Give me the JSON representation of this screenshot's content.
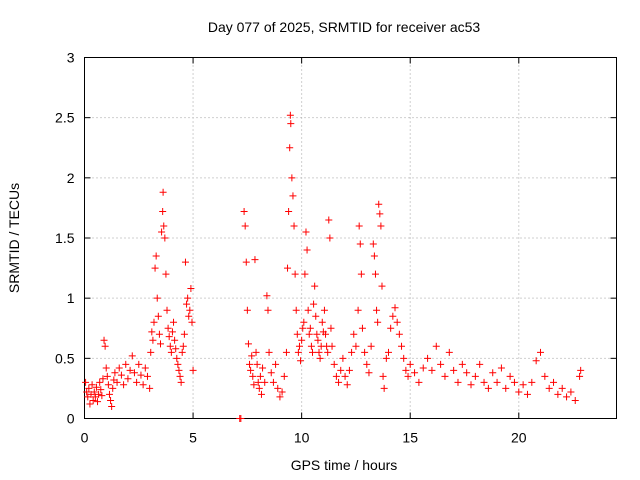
{
  "chart_data": {
    "type": "scatter",
    "title": "Day 077 of 2025, SRMTID for receiver ac53",
    "xlabel": "GPS time / hours",
    "ylabel": "SRMTID / TECUs",
    "xlim": [
      0,
      24.5
    ],
    "ylim": [
      0,
      3
    ],
    "xticks": [
      0,
      5,
      10,
      15,
      20
    ],
    "xtick_labels": [
      "0",
      "5",
      "10",
      "15",
      "20"
    ],
    "yticks": [
      0,
      0.5,
      1,
      1.5,
      2,
      2.5,
      3
    ],
    "ytick_labels": [
      "0",
      "0.5",
      "1",
      "1.5",
      "2",
      "2.5",
      "3"
    ],
    "grid": true,
    "marker": "+",
    "color": "#ff0000",
    "series": [
      {
        "name": "SRMTID",
        "points": [
          [
            0.05,
            0.3
          ],
          [
            0.1,
            0.22
          ],
          [
            0.15,
            0.18
          ],
          [
            0.2,
            0.25
          ],
          [
            0.25,
            0.12
          ],
          [
            0.3,
            0.2
          ],
          [
            0.35,
            0.28
          ],
          [
            0.4,
            0.15
          ],
          [
            0.45,
            0.22
          ],
          [
            0.5,
            0.18
          ],
          [
            0.55,
            0.26
          ],
          [
            0.6,
            0.14
          ],
          [
            0.65,
            0.2
          ],
          [
            0.7,
            0.3
          ],
          [
            0.75,
            0.24
          ],
          [
            0.8,
            0.19
          ],
          [
            0.85,
            0.33
          ],
          [
            0.9,
            0.65
          ],
          [
            0.95,
            0.6
          ],
          [
            1.0,
            0.42
          ],
          [
            1.05,
            0.35
          ],
          [
            1.1,
            0.28
          ],
          [
            1.15,
            0.2
          ],
          [
            1.2,
            0.15
          ],
          [
            1.25,
            0.1
          ],
          [
            1.3,
            0.25
          ],
          [
            1.35,
            0.32
          ],
          [
            1.4,
            0.38
          ],
          [
            1.5,
            0.3
          ],
          [
            1.6,
            0.42
          ],
          [
            1.7,
            0.36
          ],
          [
            1.8,
            0.28
          ],
          [
            1.9,
            0.45
          ],
          [
            2.0,
            0.33
          ],
          [
            2.1,
            0.4
          ],
          [
            2.2,
            0.52
          ],
          [
            2.3,
            0.38
          ],
          [
            2.4,
            0.3
          ],
          [
            2.5,
            0.45
          ],
          [
            2.6,
            0.36
          ],
          [
            2.7,
            0.28
          ],
          [
            2.8,
            0.42
          ],
          [
            2.9,
            0.35
          ],
          [
            3.0,
            0.25
          ],
          [
            3.05,
            0.55
          ],
          [
            3.1,
            0.72
          ],
          [
            3.15,
            0.65
          ],
          [
            3.2,
            0.8
          ],
          [
            3.25,
            1.25
          ],
          [
            3.3,
            1.35
          ],
          [
            3.35,
            1.0
          ],
          [
            3.4,
            0.85
          ],
          [
            3.45,
            0.7
          ],
          [
            3.5,
            0.62
          ],
          [
            3.55,
            1.55
          ],
          [
            3.6,
            1.72
          ],
          [
            3.62,
            1.88
          ],
          [
            3.65,
            1.6
          ],
          [
            3.7,
            1.5
          ],
          [
            3.75,
            1.2
          ],
          [
            3.8,
            0.9
          ],
          [
            3.85,
            0.75
          ],
          [
            3.9,
            0.68
          ],
          [
            3.95,
            0.6
          ],
          [
            4.0,
            0.55
          ],
          [
            4.05,
            0.72
          ],
          [
            4.1,
            0.8
          ],
          [
            4.15,
            0.65
          ],
          [
            4.2,
            0.58
          ],
          [
            4.25,
            0.5
          ],
          [
            4.3,
            0.45
          ],
          [
            4.35,
            0.4
          ],
          [
            4.4,
            0.35
          ],
          [
            4.45,
            0.3
          ],
          [
            4.5,
            0.55
          ],
          [
            4.55,
            0.6
          ],
          [
            4.6,
            0.7
          ],
          [
            4.65,
            1.3
          ],
          [
            4.7,
            0.95
          ],
          [
            4.75,
            1.0
          ],
          [
            4.8,
            0.85
          ],
          [
            4.85,
            0.9
          ],
          [
            4.9,
            1.08
          ],
          [
            4.95,
            0.8
          ],
          [
            5.0,
            0.4
          ],
          [
            7.15,
            0.0
          ],
          [
            7.2,
            0.0
          ],
          [
            7.35,
            1.72
          ],
          [
            7.4,
            1.6
          ],
          [
            7.45,
            1.3
          ],
          [
            7.5,
            0.9
          ],
          [
            7.55,
            0.62
          ],
          [
            7.6,
            0.45
          ],
          [
            7.65,
            0.4
          ],
          [
            7.7,
            0.52
          ],
          [
            7.75,
            0.35
          ],
          [
            7.8,
            0.28
          ],
          [
            7.85,
            1.32
          ],
          [
            7.9,
            0.55
          ],
          [
            7.95,
            0.45
          ],
          [
            8.0,
            0.3
          ],
          [
            8.05,
            0.25
          ],
          [
            8.1,
            0.35
          ],
          [
            8.15,
            0.2
          ],
          [
            8.2,
            0.42
          ],
          [
            8.3,
            0.3
          ],
          [
            8.4,
            1.02
          ],
          [
            8.45,
            0.9
          ],
          [
            8.5,
            0.55
          ],
          [
            8.6,
            0.38
          ],
          [
            8.7,
            0.3
          ],
          [
            8.8,
            0.45
          ],
          [
            8.9,
            0.25
          ],
          [
            9.0,
            0.18
          ],
          [
            9.1,
            0.22
          ],
          [
            9.2,
            0.35
          ],
          [
            9.3,
            0.55
          ],
          [
            9.35,
            1.25
          ],
          [
            9.4,
            1.72
          ],
          [
            9.45,
            2.25
          ],
          [
            9.48,
            2.52
          ],
          [
            9.5,
            2.45
          ],
          [
            9.55,
            2.0
          ],
          [
            9.6,
            1.85
          ],
          [
            9.65,
            1.6
          ],
          [
            9.7,
            1.2
          ],
          [
            9.75,
            0.9
          ],
          [
            9.8,
            0.7
          ],
          [
            9.85,
            0.55
          ],
          [
            9.9,
            0.6
          ],
          [
            9.95,
            0.48
          ],
          [
            10.0,
            0.65
          ],
          [
            10.05,
            0.75
          ],
          [
            10.1,
            0.8
          ],
          [
            10.15,
            1.2
          ],
          [
            10.2,
            1.55
          ],
          [
            10.25,
            1.4
          ],
          [
            10.3,
            0.9
          ],
          [
            10.35,
            0.7
          ],
          [
            10.4,
            0.75
          ],
          [
            10.45,
            0.6
          ],
          [
            10.5,
            0.55
          ],
          [
            10.55,
            0.95
          ],
          [
            10.6,
            1.1
          ],
          [
            10.65,
            0.85
          ],
          [
            10.7,
            0.7
          ],
          [
            10.75,
            0.65
          ],
          [
            10.8,
            0.55
          ],
          [
            10.85,
            0.5
          ],
          [
            10.9,
            0.6
          ],
          [
            10.95,
            0.8
          ],
          [
            11.0,
            0.72
          ],
          [
            11.05,
            0.9
          ],
          [
            11.1,
            0.7
          ],
          [
            11.15,
            0.6
          ],
          [
            11.2,
            0.55
          ],
          [
            11.25,
            1.65
          ],
          [
            11.3,
            1.5
          ],
          [
            11.35,
            0.75
          ],
          [
            11.4,
            0.6
          ],
          [
            11.5,
            0.45
          ],
          [
            11.6,
            0.35
          ],
          [
            11.7,
            0.3
          ],
          [
            11.8,
            0.4
          ],
          [
            11.9,
            0.5
          ],
          [
            12.0,
            0.35
          ],
          [
            12.1,
            0.28
          ],
          [
            12.2,
            0.4
          ],
          [
            12.3,
            0.55
          ],
          [
            12.4,
            0.7
          ],
          [
            12.5,
            0.6
          ],
          [
            12.6,
            0.9
          ],
          [
            12.65,
            1.6
          ],
          [
            12.7,
            1.45
          ],
          [
            12.75,
            1.2
          ],
          [
            12.8,
            0.75
          ],
          [
            12.9,
            0.55
          ],
          [
            13.0,
            0.45
          ],
          [
            13.1,
            0.38
          ],
          [
            13.2,
            0.6
          ],
          [
            13.3,
            1.45
          ],
          [
            13.35,
            1.35
          ],
          [
            13.4,
            1.2
          ],
          [
            13.45,
            0.9
          ],
          [
            13.5,
            0.8
          ],
          [
            13.55,
            1.78
          ],
          [
            13.6,
            1.7
          ],
          [
            13.65,
            1.6
          ],
          [
            13.7,
            1.1
          ],
          [
            13.75,
            0.35
          ],
          [
            13.8,
            0.25
          ],
          [
            13.9,
            0.5
          ],
          [
            14.0,
            0.55
          ],
          [
            14.1,
            0.75
          ],
          [
            14.2,
            0.85
          ],
          [
            14.3,
            0.92
          ],
          [
            14.4,
            0.8
          ],
          [
            14.5,
            0.7
          ],
          [
            14.6,
            0.6
          ],
          [
            14.7,
            0.5
          ],
          [
            14.8,
            0.4
          ],
          [
            14.9,
            0.35
          ],
          [
            15.0,
            0.45
          ],
          [
            15.2,
            0.38
          ],
          [
            15.4,
            0.3
          ],
          [
            15.6,
            0.42
          ],
          [
            15.8,
            0.5
          ],
          [
            16.0,
            0.4
          ],
          [
            16.2,
            0.6
          ],
          [
            16.4,
            0.45
          ],
          [
            16.6,
            0.35
          ],
          [
            16.8,
            0.55
          ],
          [
            17.0,
            0.4
          ],
          [
            17.2,
            0.3
          ],
          [
            17.4,
            0.45
          ],
          [
            17.6,
            0.38
          ],
          [
            17.8,
            0.28
          ],
          [
            18.0,
            0.35
          ],
          [
            18.2,
            0.45
          ],
          [
            18.4,
            0.3
          ],
          [
            18.6,
            0.25
          ],
          [
            18.8,
            0.38
          ],
          [
            19.0,
            0.3
          ],
          [
            19.2,
            0.42
          ],
          [
            19.4,
            0.25
          ],
          [
            19.6,
            0.35
          ],
          [
            19.8,
            0.3
          ],
          [
            20.0,
            0.22
          ],
          [
            20.2,
            0.28
          ],
          [
            20.4,
            0.2
          ],
          [
            20.6,
            0.3
          ],
          [
            20.8,
            0.48
          ],
          [
            21.0,
            0.55
          ],
          [
            21.2,
            0.35
          ],
          [
            21.4,
            0.25
          ],
          [
            21.6,
            0.3
          ],
          [
            21.8,
            0.2
          ],
          [
            22.0,
            0.25
          ],
          [
            22.2,
            0.18
          ],
          [
            22.4,
            0.22
          ],
          [
            22.6,
            0.15
          ],
          [
            22.8,
            0.35
          ],
          [
            22.85,
            0.4
          ]
        ]
      }
    ]
  }
}
